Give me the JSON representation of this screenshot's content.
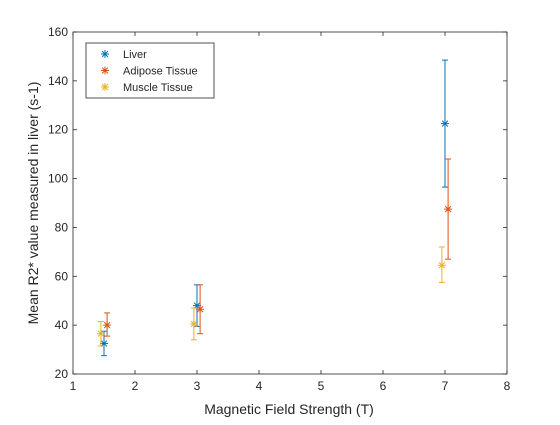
{
  "chart_data": {
    "type": "scatter",
    "title": "",
    "xlabel": "Magnetic Field Strength (T)",
    "ylabel": "Mean R2* value measured in liver (s-1)",
    "xlim": [
      1,
      8
    ],
    "ylim": [
      20,
      160
    ],
    "xticks": [
      1,
      2,
      3,
      4,
      5,
      6,
      7,
      8
    ],
    "yticks": [
      20,
      40,
      60,
      80,
      100,
      120,
      140,
      160
    ],
    "grid": false,
    "legend_position": "top-left",
    "series": [
      {
        "name": "Liver",
        "color": "#0072BD",
        "x": [
          1.5,
          3.0,
          7.0
        ],
        "y": [
          32.5,
          48.0,
          122.5
        ],
        "err_low": [
          27.5,
          39.5,
          96.5
        ],
        "err_high": [
          37.5,
          56.5,
          148.5
        ]
      },
      {
        "name": "Adipose Tissue",
        "color": "#D95319",
        "x": [
          1.55,
          3.05,
          7.05
        ],
        "y": [
          40.0,
          46.5,
          87.5
        ],
        "err_low": [
          35.5,
          36.5,
          67.0
        ],
        "err_high": [
          45.0,
          56.5,
          108.0
        ]
      },
      {
        "name": "Muscle Tissue",
        "color": "#EDB120",
        "x": [
          1.45,
          2.95,
          6.95
        ],
        "y": [
          36.5,
          40.5,
          64.5
        ],
        "err_low": [
          31.5,
          34.0,
          57.5
        ],
        "err_high": [
          41.5,
          47.0,
          72.0
        ]
      }
    ]
  }
}
